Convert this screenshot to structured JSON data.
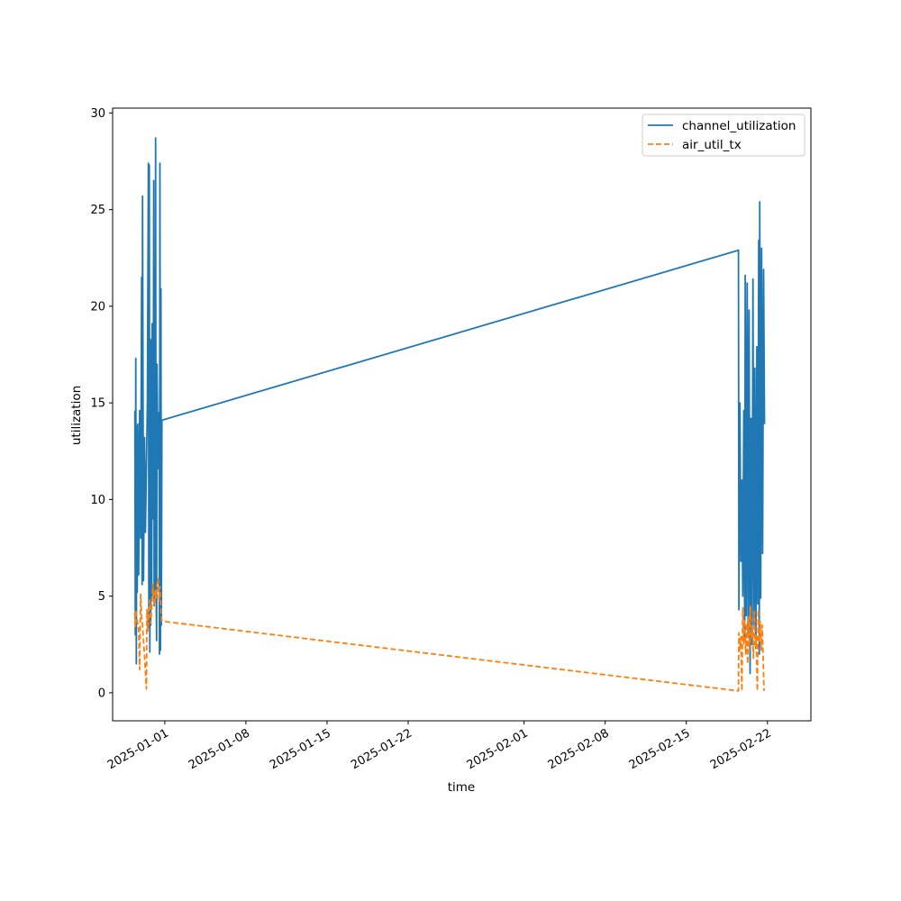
{
  "chart_data": {
    "type": "line",
    "title": "",
    "xlabel": "time",
    "ylabel": "utilization",
    "xlim": [
      "2024-12-27T12:00",
      "2025-02-25T18:00"
    ],
    "ylim": [
      -1.45,
      30.25
    ],
    "grid": false,
    "legend_position": "top-right",
    "x_ticks": [
      "2025-01-01",
      "2025-01-08",
      "2025-01-15",
      "2025-01-22",
      "2025-02-01",
      "2025-02-08",
      "2025-02-15",
      "2025-02-22"
    ],
    "y_ticks": [
      0,
      5,
      10,
      15,
      20,
      25,
      30
    ],
    "series": [
      {
        "name": "channel_utilization",
        "color": "#1f77b4",
        "style": "solid",
        "points": [
          [
            "2024-12-29T10:00",
            14.6
          ],
          [
            "2024-12-29T11:00",
            3.0
          ],
          [
            "2024-12-29T12:00",
            17.3
          ],
          [
            "2024-12-29T13:00",
            1.5
          ],
          [
            "2024-12-29T14:00",
            13.8
          ],
          [
            "2024-12-29T15:00",
            5.2
          ],
          [
            "2024-12-29T16:00",
            13.9
          ],
          [
            "2024-12-29T18:00",
            6.1
          ],
          [
            "2024-12-29T20:00",
            14.6
          ],
          [
            "2024-12-29T22:00",
            8.0
          ],
          [
            "2024-12-30T00:00",
            21.5
          ],
          [
            "2024-12-30T01:00",
            5.6
          ],
          [
            "2024-12-30T02:00",
            25.7
          ],
          [
            "2024-12-30T04:00",
            5.8
          ],
          [
            "2024-12-30T06:00",
            13.2
          ],
          [
            "2024-12-30T08:00",
            8.3
          ],
          [
            "2024-12-30T12:00",
            15.1
          ],
          [
            "2024-12-30T14:00",
            27.4
          ],
          [
            "2024-12-30T15:00",
            3.4
          ],
          [
            "2024-12-30T16:00",
            27.3
          ],
          [
            "2024-12-30T17:00",
            2.1
          ],
          [
            "2024-12-30T18:00",
            18.3
          ],
          [
            "2024-12-30T19:00",
            3.5
          ],
          [
            "2024-12-30T20:00",
            18.2
          ],
          [
            "2024-12-30T21:00",
            4.8
          ],
          [
            "2024-12-30T22:00",
            19.1
          ],
          [
            "2024-12-31T00:00",
            9.0
          ],
          [
            "2024-12-31T01:00",
            26.5
          ],
          [
            "2024-12-31T02:00",
            4.5
          ],
          [
            "2024-12-31T03:00",
            22.0
          ],
          [
            "2024-12-31T04:00",
            5.0
          ],
          [
            "2024-12-31T05:00",
            28.7
          ],
          [
            "2024-12-31T06:00",
            6.0
          ],
          [
            "2024-12-31T07:00",
            2.7
          ],
          [
            "2024-12-31T08:00",
            17.0
          ],
          [
            "2024-12-31T10:00",
            11.6
          ],
          [
            "2024-12-31T12:00",
            14.5
          ],
          [
            "2024-12-31T13:00",
            2.0
          ],
          [
            "2024-12-31T14:00",
            27.4
          ],
          [
            "2024-12-31T15:00",
            2.2
          ],
          [
            "2024-12-31T16:00",
            20.9
          ],
          [
            "2024-12-31T17:00",
            3.5
          ],
          [
            "2024-12-31T18:00",
            14.1
          ],
          [
            "2025-02-19T12:00",
            22.9
          ],
          [
            "2025-02-19T13:00",
            4.3
          ],
          [
            "2025-02-19T15:00",
            15.0
          ],
          [
            "2025-02-19T17:00",
            6.8
          ],
          [
            "2025-02-19T19:00",
            11.0
          ],
          [
            "2025-02-19T21:00",
            5.0
          ],
          [
            "2025-02-19T23:00",
            14.6
          ],
          [
            "2025-02-20T01:00",
            2.7
          ],
          [
            "2025-02-20T02:00",
            21.6
          ],
          [
            "2025-02-20T04:00",
            4.0
          ],
          [
            "2025-02-20T06:00",
            21.2
          ],
          [
            "2025-02-20T08:00",
            3.0
          ],
          [
            "2025-02-20T10:00",
            19.8
          ],
          [
            "2025-02-20T12:00",
            1.0
          ],
          [
            "2025-02-20T14:00",
            14.2
          ],
          [
            "2025-02-20T16:00",
            2.5
          ],
          [
            "2025-02-20T18:00",
            21.4
          ],
          [
            "2025-02-20T20:00",
            3.5
          ],
          [
            "2025-02-20T22:00",
            16.8
          ],
          [
            "2025-02-21T00:00",
            2.3
          ],
          [
            "2025-02-21T02:00",
            17.9
          ],
          [
            "2025-02-21T04:00",
            4.6
          ],
          [
            "2025-02-21T06:00",
            23.4
          ],
          [
            "2025-02-21T07:00",
            2.0
          ],
          [
            "2025-02-21T08:00",
            25.4
          ],
          [
            "2025-02-21T10:00",
            4.9
          ],
          [
            "2025-02-21T12:00",
            23.0
          ],
          [
            "2025-02-21T14:00",
            7.2
          ],
          [
            "2025-02-21T16:00",
            21.9
          ],
          [
            "2025-02-21T18:00",
            13.9
          ]
        ]
      },
      {
        "name": "air_util_tx",
        "color": "#ff7f0e",
        "style": "dashed",
        "points": [
          [
            "2024-12-29T10:00",
            4.1
          ],
          [
            "2024-12-29T11:00",
            3.4
          ],
          [
            "2024-12-29T12:00",
            4.3
          ],
          [
            "2024-12-29T14:00",
            3.8
          ],
          [
            "2024-12-29T16:00",
            3.6
          ],
          [
            "2024-12-29T18:00",
            3.3
          ],
          [
            "2024-12-29T20:00",
            1.2
          ],
          [
            "2024-12-29T22:00",
            5.1
          ],
          [
            "2024-12-30T00:00",
            3.9
          ],
          [
            "2024-12-30T02:00",
            3.5
          ],
          [
            "2024-12-30T06:00",
            1.9
          ],
          [
            "2024-12-30T10:00",
            0.2
          ],
          [
            "2024-12-30T11:00",
            4.3
          ],
          [
            "2024-12-30T13:00",
            3.2
          ],
          [
            "2024-12-30T15:00",
            4.0
          ],
          [
            "2024-12-30T17:00",
            4.8
          ],
          [
            "2024-12-30T19:00",
            3.6
          ],
          [
            "2024-12-30T21:00",
            4.4
          ],
          [
            "2024-12-30T23:00",
            5.6
          ],
          [
            "2024-12-31T02:00",
            4.5
          ],
          [
            "2024-12-31T04:00",
            5.3
          ],
          [
            "2024-12-31T06:00",
            4.9
          ],
          [
            "2024-12-31T08:00",
            5.6
          ],
          [
            "2024-12-31T10:00",
            5.9
          ],
          [
            "2024-12-31T12:00",
            4.8
          ],
          [
            "2024-12-31T14:00",
            5.5
          ],
          [
            "2024-12-31T16:00",
            4.2
          ],
          [
            "2024-12-31T18:00",
            3.7
          ],
          [
            "2025-02-19T12:00",
            0.1
          ],
          [
            "2025-02-19T13:00",
            3.1
          ],
          [
            "2025-02-19T15:00",
            2.2
          ],
          [
            "2025-02-19T17:00",
            2.9
          ],
          [
            "2025-02-19T19:00",
            0.1
          ],
          [
            "2025-02-19T21:00",
            4.4
          ],
          [
            "2025-02-19T23:00",
            2.5
          ],
          [
            "2025-02-20T01:00",
            3.8
          ],
          [
            "2025-02-20T03:00",
            2.0
          ],
          [
            "2025-02-20T05:00",
            3.6
          ],
          [
            "2025-02-20T07:00",
            1.5
          ],
          [
            "2025-02-20T09:00",
            3.9
          ],
          [
            "2025-02-20T11:00",
            2.3
          ],
          [
            "2025-02-20T13:00",
            4.5
          ],
          [
            "2025-02-20T15:00",
            2.8
          ],
          [
            "2025-02-20T17:00",
            3.3
          ],
          [
            "2025-02-20T19:00",
            1.8
          ],
          [
            "2025-02-20T21:00",
            4.2
          ],
          [
            "2025-02-20T23:00",
            2.4
          ],
          [
            "2025-02-21T01:00",
            3.0
          ],
          [
            "2025-02-21T03:00",
            0.1
          ],
          [
            "2025-02-21T05:00",
            4.3
          ],
          [
            "2025-02-21T07:00",
            2.6
          ],
          [
            "2025-02-21T09:00",
            3.7
          ],
          [
            "2025-02-21T11:00",
            2.2
          ],
          [
            "2025-02-21T13:00",
            3.5
          ],
          [
            "2025-02-21T15:00",
            2.0
          ],
          [
            "2025-02-21T17:00",
            0.1
          ]
        ]
      }
    ]
  }
}
